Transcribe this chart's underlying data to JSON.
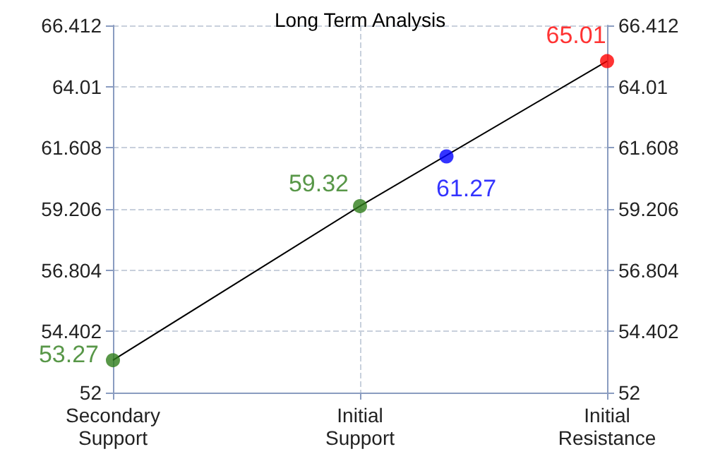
{
  "chart_data": {
    "type": "scatter",
    "title": "Long Term Analysis",
    "categories": [
      "Secondary\nSupport",
      null,
      null,
      null,
      null,
      null,
      null,
      null,
      null,
      null,
      null,
      null,
      null,
      null,
      null,
      null,
      null,
      null,
      null,
      null,
      "Initial\nSupport",
      null,
      null,
      null,
      null,
      null,
      null,
      null,
      null,
      null,
      null,
      null,
      null,
      null,
      null,
      null,
      null,
      null,
      null,
      null,
      "Initial\nResistance"
    ],
    "ylim": [
      52,
      66.412
    ],
    "yticks": [
      52,
      54.402,
      56.804,
      59.206,
      61.608,
      64.01,
      66.412
    ],
    "y2lim": [
      52,
      66.412
    ],
    "y2ticks": [
      52,
      54.402,
      56.804,
      59.206,
      61.608,
      64.01,
      66.412
    ],
    "grid": true,
    "series": [
      {
        "type": "line",
        "color": "#000000",
        "marker": "none",
        "values": [
          53.27,
          null,
          null,
          null,
          null,
          null,
          null,
          null,
          null,
          null,
          null,
          null,
          null,
          null,
          null,
          null,
          null,
          null,
          null,
          null,
          59.32,
          null,
          null,
          null,
          null,
          null,
          null,
          null,
          null,
          null,
          null,
          null,
          null,
          null,
          null,
          null,
          null,
          null,
          null,
          null,
          65.01
        ]
      },
      {
        "marker": "circle",
        "value_labels": [
          "53.27",
          null,
          null,
          null,
          null,
          null,
          null,
          null,
          null,
          null,
          null,
          null,
          null,
          null,
          null,
          null,
          null,
          null,
          null,
          null,
          "59.32",
          null,
          null,
          null,
          null,
          null,
          null,
          null,
          null,
          null,
          null,
          null,
          null,
          null,
          null,
          null,
          null,
          null,
          null,
          null,
          "65.01"
        ],
        "colors": [
          "#2e7d1a",
          null,
          null,
          null,
          null,
          null,
          null,
          null,
          null,
          null,
          null,
          null,
          null,
          null,
          null,
          null,
          null,
          null,
          null,
          null,
          "#2e7d1a",
          null,
          null,
          null,
          null,
          null,
          null,
          null,
          null,
          null,
          null,
          null,
          null,
          null,
          null,
          null,
          null,
          null,
          null,
          null,
          "#ff0000"
        ],
        "values": [
          53.27,
          null,
          null,
          null,
          null,
          null,
          null,
          null,
          null,
          null,
          null,
          null,
          null,
          null,
          null,
          null,
          null,
          null,
          null,
          null,
          59.32,
          null,
          null,
          null,
          null,
          null,
          null,
          null,
          null,
          null,
          null,
          null,
          null,
          null,
          null,
          null,
          null,
          null,
          null,
          null,
          65.01
        ]
      },
      {
        "marker": "circle",
        "color": "#0000ff",
        "value_labels": [
          null,
          null,
          null,
          null,
          null,
          null,
          null,
          null,
          null,
          null,
          null,
          null,
          null,
          null,
          null,
          null,
          null,
          null,
          null,
          null,
          null,
          null,
          null,
          null,
          null,
          null,
          null,
          "61.27",
          null,
          null,
          null,
          null,
          null,
          null,
          null,
          null,
          null,
          null,
          null,
          null,
          null
        ],
        "values": [
          null,
          null,
          null,
          null,
          null,
          null,
          null,
          null,
          null,
          null,
          null,
          null,
          null,
          null,
          null,
          null,
          null,
          null,
          null,
          null,
          null,
          null,
          null,
          null,
          null,
          null,
          null,
          61.27,
          null,
          null,
          null,
          null,
          null,
          null,
          null,
          null,
          null,
          null,
          null,
          null,
          null
        ]
      }
    ]
  }
}
